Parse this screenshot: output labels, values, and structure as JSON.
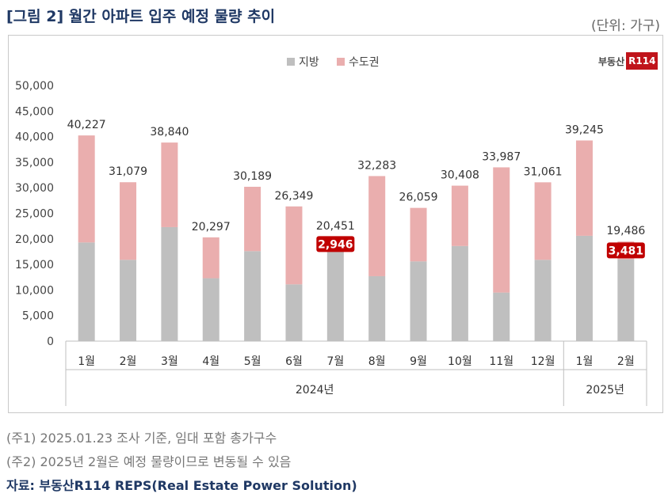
{
  "title": "[그림 2] 월간 아파트 입주 예정 물량 추이",
  "unit": "(단위: 가구)",
  "logo": {
    "text": "부동산",
    "box": "R114"
  },
  "notes": {
    "note1": "(주1) 2025.01.23 조사 기준, 임대 포함 총가구수",
    "note2": "(주2) 2025년 2월은 예정 물량이므로 변동될 수 있음"
  },
  "source": "자료: 부동산R114 REPS(Real Estate Power Solution)",
  "colors": {
    "jibang": "#bfbfbf",
    "sudokwon": "#eaaeae",
    "highlight": "#c00000"
  },
  "chart_data": {
    "type": "bar",
    "stacked": true,
    "categories": [
      "1월",
      "2월",
      "3월",
      "4월",
      "5월",
      "6월",
      "7월",
      "8월",
      "9월",
      "10월",
      "11월",
      "12월",
      "1월",
      "2월"
    ],
    "year_groups": [
      {
        "label": "2024년",
        "span": 12
      },
      {
        "label": "2025년",
        "span": 2
      }
    ],
    "series": [
      {
        "name": "지방",
        "values": [
          19300,
          15900,
          22300,
          12300,
          17600,
          11100,
          17505,
          12700,
          15600,
          18600,
          9500,
          15900,
          20600,
          16005
        ]
      },
      {
        "name": "수도권",
        "values": [
          20927,
          15179,
          16540,
          7997,
          12589,
          15249,
          2946,
          19583,
          10459,
          11808,
          24487,
          15161,
          18645,
          3481
        ]
      }
    ],
    "totals": [
      "40,227",
      "31,079",
      "38,840",
      "20,297",
      "30,189",
      "26,349",
      "20,451",
      "32,283",
      "26,059",
      "30,408",
      "33,987",
      "31,061",
      "39,245",
      "19,486"
    ],
    "highlight_labels": [
      {
        "index": 6,
        "label": "2,946"
      },
      {
        "index": 13,
        "label": "3,481"
      }
    ],
    "y_ticks": [
      "50,000",
      "45,000",
      "40,000",
      "35,000",
      "30,000",
      "25,000",
      "20,000",
      "15,000",
      "10,000",
      "5,000",
      "0"
    ],
    "ylim": [
      0,
      50000
    ],
    "legend": "top-center"
  }
}
